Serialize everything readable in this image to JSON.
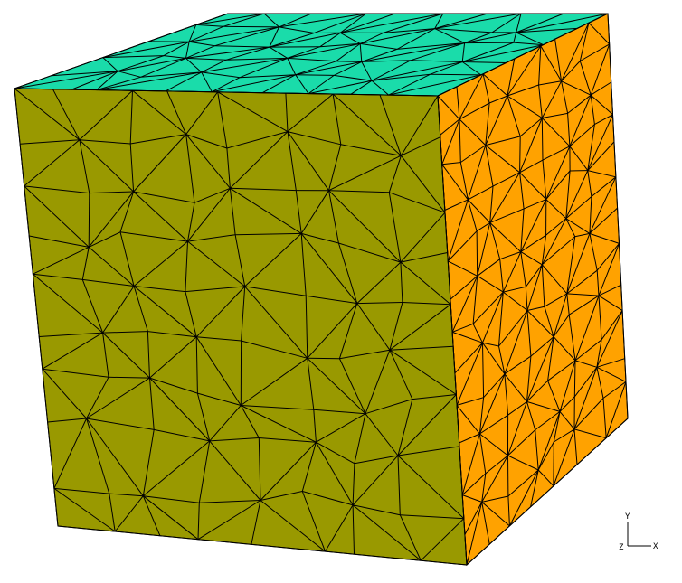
{
  "scene": {
    "background": "#ffffff",
    "mesh_line_color": "#000000",
    "faces": [
      {
        "id": "front",
        "color": "#999900"
      },
      {
        "id": "top",
        "color": "#1adcaa"
      },
      {
        "id": "right",
        "color": "#ffa200"
      }
    ]
  },
  "axis_triad": {
    "y_label": "Y",
    "x_label": "X",
    "z_label": "Z",
    "color": "#000000"
  }
}
